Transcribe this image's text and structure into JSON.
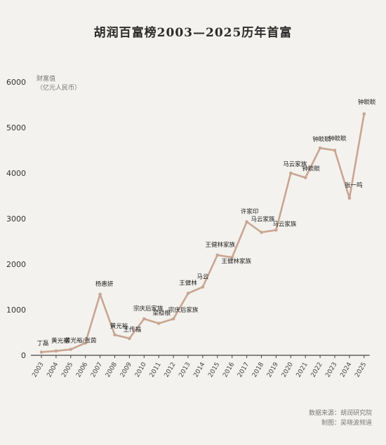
{
  "chart_data": {
    "type": "line",
    "title": "胡润百富榜2003—2025历年首富",
    "ylabel": "财富值\n（亿元人民币）",
    "xlabel": "",
    "ylim": [
      0,
      6000
    ],
    "yticks": [
      0,
      1000,
      2000,
      3000,
      4000,
      5000,
      6000
    ],
    "grid": false,
    "line_color": "#c9a592",
    "x": [
      "2003",
      "2004",
      "2005",
      "2006",
      "2007",
      "2008",
      "2009",
      "2010",
      "2011",
      "2012",
      "2013",
      "2014",
      "2015",
      "2016",
      "2017",
      "2018",
      "2019",
      "2020",
      "2021",
      "2022",
      "2023",
      "2024",
      "2025"
    ],
    "series": [
      {
        "values": [
          70,
          95,
          130,
          270,
          1340,
          450,
          370,
          800,
          700,
          800,
          1360,
          1500,
          2200,
          2150,
          2930,
          2700,
          2750,
          4000,
          3900,
          4550,
          4500,
          3450,
          5300
        ]
      }
    ],
    "point_labels": [
      "丁磊",
      "黄光裕",
      "黄光裕/张茵",
      "",
      "杨惠妍",
      "黄光裕",
      "王传福",
      "宗庆后家族",
      "梁稳根",
      "宗庆后家族",
      "王健林",
      "马云",
      "王健林家族",
      "王健林家族",
      "许家印",
      "马云家族",
      "马云家族",
      "马云家族",
      "钟睒睒",
      "钟睒睒",
      "钟睒睒",
      "张一鸣",
      "钟睒睒"
    ]
  },
  "footer": {
    "source": "数据来源：胡润研究院",
    "credit": "制图：吴晓波频道"
  }
}
